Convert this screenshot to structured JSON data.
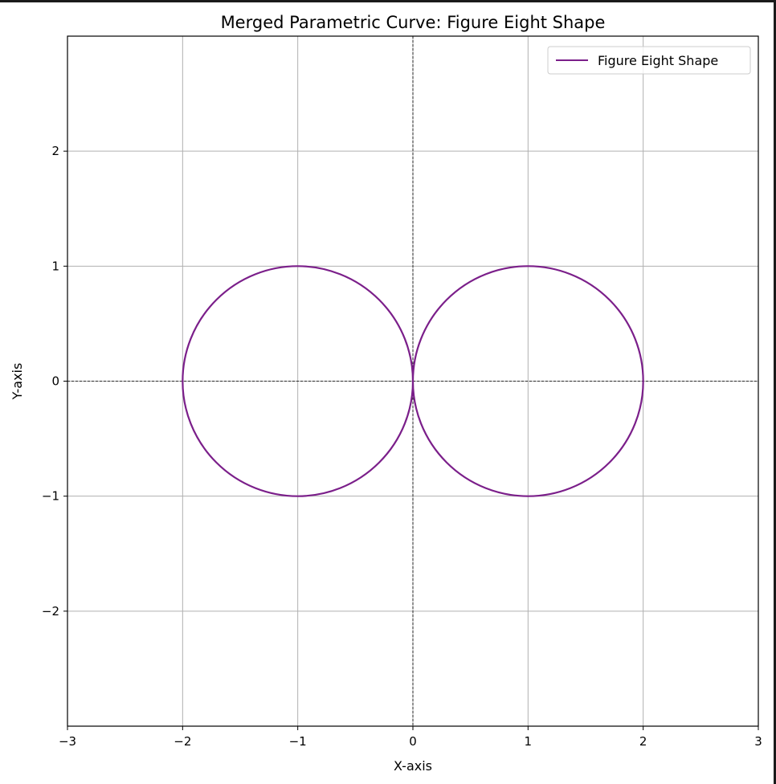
{
  "chart_data": {
    "type": "line",
    "title": "Merged Parametric Curve: Figure Eight Shape",
    "xlabel": "X-axis",
    "ylabel": "Y-axis",
    "xlim": [
      -3,
      3
    ],
    "ylim": [
      -3,
      3
    ],
    "xticks": [
      -3,
      -2,
      -1,
      0,
      1,
      2,
      3
    ],
    "xtick_labels": [
      "−3",
      "−2",
      "−1",
      "0",
      "1",
      "2",
      "3"
    ],
    "yticks": [
      -2,
      -1,
      0,
      1,
      2
    ],
    "ytick_labels": [
      "−2",
      "−1",
      "0",
      "1",
      "2"
    ],
    "grid": true,
    "reference_lines": [
      {
        "orientation": "horizontal",
        "value": 0,
        "style": "dashed",
        "color": "#000000"
      },
      {
        "orientation": "vertical",
        "value": 0,
        "style": "dashed",
        "color": "#000000"
      }
    ],
    "legend": {
      "position": "top-right"
    },
    "series": [
      {
        "name": "Figure Eight Shape",
        "color": "#7b1f8a",
        "shape": "two circles of radius 1 centered at (-1, 0) and (1, 0)",
        "components": [
          {
            "center": [
              -1,
              0
            ],
            "radius": 1
          },
          {
            "center": [
              1,
              0
            ],
            "radius": 1
          }
        ]
      }
    ]
  }
}
